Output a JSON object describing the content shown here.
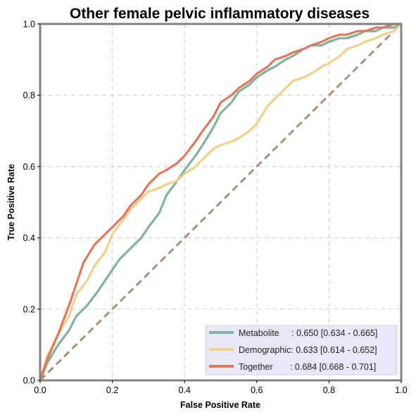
{
  "chart_data": {
    "type": "line",
    "title": "Other female pelvic inflammatory diseases",
    "xlabel": "False Positive Rate",
    "ylabel": "True Positive Rate",
    "xlim": [
      0,
      1
    ],
    "ylim": [
      0,
      1
    ],
    "x_ticks": [
      "0.0",
      "0.2",
      "0.4",
      "0.6",
      "0.8",
      "1.0"
    ],
    "y_ticks": [
      "0.0",
      "0.2",
      "0.4",
      "0.6",
      "0.8",
      "1.0"
    ],
    "grid": true,
    "legend_position": "lower-right",
    "chance_line": {
      "color": "#a88f80",
      "x": [
        0,
        1
      ],
      "y": [
        0,
        1
      ]
    },
    "series": [
      {
        "name": "Metabolite",
        "legend_label": "Metabolite     : 0.650 [0.634 - 0.665]",
        "color": "#7fb39a",
        "x": [
          0,
          0.02,
          0.05,
          0.08,
          0.1,
          0.13,
          0.16,
          0.18,
          0.2,
          0.22,
          0.25,
          0.28,
          0.3,
          0.33,
          0.35,
          0.38,
          0.4,
          0.43,
          0.45,
          0.48,
          0.5,
          0.53,
          0.55,
          0.58,
          0.6,
          0.63,
          0.65,
          0.68,
          0.7,
          0.73,
          0.75,
          0.78,
          0.8,
          0.83,
          0.85,
          0.88,
          0.9,
          0.93,
          0.95,
          0.98,
          1.0
        ],
        "y": [
          0,
          0.05,
          0.1,
          0.14,
          0.18,
          0.21,
          0.25,
          0.28,
          0.31,
          0.34,
          0.37,
          0.4,
          0.43,
          0.47,
          0.52,
          0.56,
          0.59,
          0.63,
          0.66,
          0.71,
          0.75,
          0.78,
          0.81,
          0.83,
          0.85,
          0.87,
          0.88,
          0.9,
          0.91,
          0.93,
          0.94,
          0.94,
          0.95,
          0.96,
          0.96,
          0.97,
          0.98,
          0.98,
          0.99,
          0.99,
          1.0
        ]
      },
      {
        "name": "Demographic",
        "legend_label": "Demographic: 0.633 [0.614 - 0.652]",
        "color": "#f2cf8a",
        "x": [
          0,
          0.02,
          0.05,
          0.08,
          0.1,
          0.13,
          0.15,
          0.18,
          0.2,
          0.23,
          0.25,
          0.28,
          0.3,
          0.33,
          0.35,
          0.38,
          0.4,
          0.43,
          0.45,
          0.48,
          0.5,
          0.53,
          0.55,
          0.58,
          0.6,
          0.63,
          0.65,
          0.68,
          0.7,
          0.73,
          0.75,
          0.78,
          0.8,
          0.83,
          0.85,
          0.88,
          0.9,
          0.93,
          0.95,
          0.98,
          1.0
        ],
        "y": [
          0,
          0.07,
          0.13,
          0.18,
          0.24,
          0.28,
          0.32,
          0.36,
          0.41,
          0.45,
          0.48,
          0.51,
          0.53,
          0.54,
          0.55,
          0.56,
          0.58,
          0.6,
          0.62,
          0.65,
          0.66,
          0.67,
          0.68,
          0.7,
          0.72,
          0.77,
          0.79,
          0.82,
          0.84,
          0.85,
          0.86,
          0.88,
          0.89,
          0.91,
          0.93,
          0.94,
          0.95,
          0.96,
          0.97,
          0.98,
          1.0
        ]
      },
      {
        "name": "Together",
        "legend_label": "Together       : 0.684 [0.668 - 0.701]",
        "color": "#e07860",
        "x": [
          0,
          0.02,
          0.05,
          0.08,
          0.1,
          0.12,
          0.15,
          0.18,
          0.2,
          0.23,
          0.25,
          0.28,
          0.3,
          0.33,
          0.35,
          0.38,
          0.4,
          0.43,
          0.45,
          0.48,
          0.5,
          0.53,
          0.55,
          0.58,
          0.6,
          0.63,
          0.65,
          0.68,
          0.7,
          0.73,
          0.75,
          0.78,
          0.8,
          0.83,
          0.85,
          0.88,
          0.9,
          0.93,
          0.95,
          0.98,
          1.0
        ],
        "y": [
          0,
          0.06,
          0.13,
          0.21,
          0.27,
          0.33,
          0.38,
          0.41,
          0.43,
          0.46,
          0.49,
          0.52,
          0.55,
          0.58,
          0.59,
          0.61,
          0.63,
          0.67,
          0.7,
          0.74,
          0.78,
          0.8,
          0.82,
          0.84,
          0.86,
          0.88,
          0.9,
          0.91,
          0.92,
          0.93,
          0.94,
          0.95,
          0.96,
          0.97,
          0.97,
          0.98,
          0.98,
          0.99,
          0.99,
          1.0,
          1.0
        ]
      }
    ]
  }
}
